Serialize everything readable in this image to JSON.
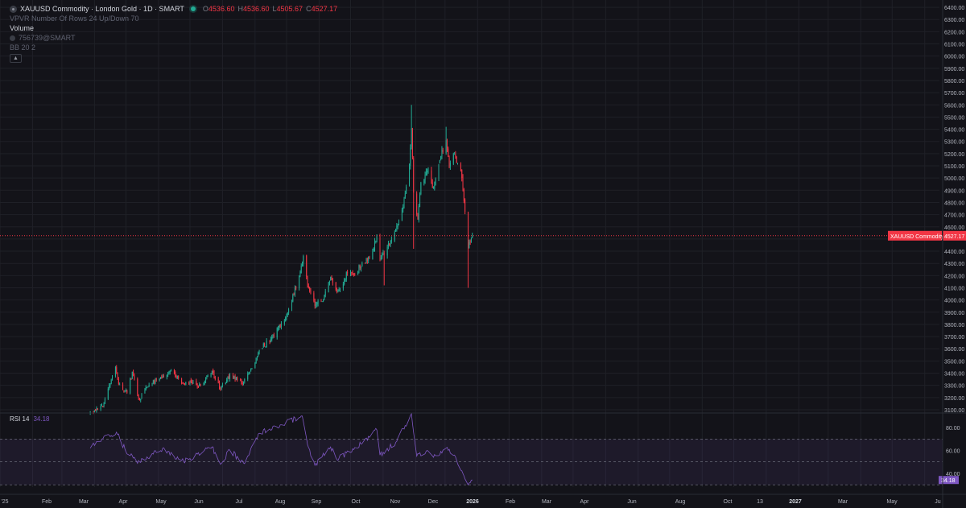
{
  "legend": {
    "symbol": "XAUUSD Commodity · London Gold · 1D · SMART",
    "ohlc": [
      {
        "key": "O",
        "value": "4536.60"
      },
      {
        "key": "H",
        "value": "4536.60"
      },
      {
        "key": "L",
        "value": "4505.67"
      },
      {
        "key": "C",
        "value": "4527.17"
      }
    ],
    "vpvr": "VPVR Number Of Rows 24 Up/Down 70",
    "volume_label": "Volume",
    "volume_value": "756739@SMART",
    "bb": "BB 20 2"
  },
  "price_scale": {
    "ticks": [
      "6400.00",
      "6300.00",
      "6200.00",
      "6100.00",
      "6000.00",
      "5900.00",
      "5800.00",
      "5700.00",
      "5600.00",
      "5500.00",
      "5400.00",
      "5300.00",
      "5200.00",
      "5100.00",
      "5000.00",
      "4900.00",
      "4800.00",
      "4700.00",
      "4600.00",
      "4500.00",
      "4400.00",
      "4300.00",
      "4200.00",
      "4100.00",
      "4000.00",
      "3900.00",
      "3800.00",
      "3700.00",
      "3600.00",
      "3500.00",
      "3400.00",
      "3300.00",
      "3200.00",
      "3100.00"
    ],
    "current_tag": "XAUUSD Commodity",
    "current_value": "4527.17"
  },
  "rsi": {
    "label": "RSI 14",
    "value": "34.18",
    "ticks": [
      "80.00",
      "60.00",
      "40.00"
    ],
    "upper": 70,
    "lower": 30
  },
  "time_axis": {
    "labels": [
      "'25",
      "Feb",
      "Mar",
      "Apr",
      "May",
      "Jun",
      "Jul",
      "Aug",
      "Sep",
      "Oct",
      "Nov",
      "Dec",
      "2026",
      "Feb",
      "Mar",
      "Apr",
      "Jun",
      "Aug",
      "Oct",
      "13",
      "2027",
      "Mar",
      "May",
      "Ju"
    ],
    "bold": [
      "2026",
      "2027"
    ]
  },
  "colors": {
    "background": "#131319",
    "up": "#22ab94",
    "down": "#f23645",
    "rsi_line": "#7e57c2",
    "grid": "#1f2027"
  },
  "chart_data": [
    {
      "type": "candlestick",
      "title": "XAUUSD Commodity · London Gold · 1D · SMART",
      "ylim": [
        3080,
        6460
      ],
      "x_start": "2025-01-01",
      "x_end": "2027-06-15",
      "first_candle": "2025-03-28",
      "last_candle": "2026-03-27",
      "anchors": [
        {
          "date": "2025-03-28",
          "close": 3085
        },
        {
          "date": "2025-04-03",
          "close": 3110
        },
        {
          "date": "2025-04-10",
          "close": 3150
        },
        {
          "date": "2025-04-21",
          "close": 3450
        },
        {
          "date": "2025-04-24",
          "close": 3310
        },
        {
          "date": "2025-05-02",
          "close": 3240
        },
        {
          "date": "2025-05-07",
          "close": 3410
        },
        {
          "date": "2025-05-14",
          "close": 3180
        },
        {
          "date": "2025-05-20",
          "close": 3290
        },
        {
          "date": "2025-06-05",
          "close": 3380
        },
        {
          "date": "2025-06-13",
          "close": 3420
        },
        {
          "date": "2025-06-25",
          "close": 3310
        },
        {
          "date": "2025-07-01",
          "close": 3340
        },
        {
          "date": "2025-07-09",
          "close": 3290
        },
        {
          "date": "2025-07-22",
          "close": 3420
        },
        {
          "date": "2025-07-30",
          "close": 3270
        },
        {
          "date": "2025-08-08",
          "close": 3390
        },
        {
          "date": "2025-08-20",
          "close": 3310
        },
        {
          "date": "2025-08-29",
          "close": 3440
        },
        {
          "date": "2025-09-05",
          "close": 3590
        },
        {
          "date": "2025-09-16",
          "close": 3680
        },
        {
          "date": "2025-09-30",
          "close": 3860
        },
        {
          "date": "2025-10-08",
          "close": 4040
        },
        {
          "date": "2025-10-17",
          "close": 4360
        },
        {
          "date": "2025-10-21",
          "close": 4110
        },
        {
          "date": "2025-10-28",
          "close": 3950
        },
        {
          "date": "2025-11-04",
          "close": 3990
        },
        {
          "date": "2025-11-12",
          "close": 4190
        },
        {
          "date": "2025-11-18",
          "close": 4060
        },
        {
          "date": "2025-11-28",
          "close": 4220
        },
        {
          "date": "2025-12-05",
          "close": 4210
        },
        {
          "date": "2025-12-12",
          "close": 4300
        },
        {
          "date": "2025-12-19",
          "close": 4340
        },
        {
          "date": "2025-12-26",
          "close": 4530
        },
        {
          "date": "2025-12-29",
          "close": 4330
        },
        {
          "date": "2026-01-08",
          "close": 4480
        },
        {
          "date": "2026-01-14",
          "close": 4610
        },
        {
          "date": "2026-01-20",
          "close": 4760
        },
        {
          "date": "2026-01-26",
          "close": 5100
        },
        {
          "date": "2026-01-28",
          "close": 5410
        },
        {
          "date": "2026-01-30",
          "close": 4880
        },
        {
          "date": "2026-02-03",
          "close": 4660
        },
        {
          "date": "2026-02-06",
          "close": 4960
        },
        {
          "date": "2026-02-12",
          "close": 5060
        },
        {
          "date": "2026-02-18",
          "close": 4920
        },
        {
          "date": "2026-02-25",
          "close": 5180
        },
        {
          "date": "2026-03-02",
          "close": 5310
        },
        {
          "date": "2026-03-05",
          "close": 5090
        },
        {
          "date": "2026-03-10",
          "close": 5200
        },
        {
          "date": "2026-03-17",
          "close": 5000
        },
        {
          "date": "2026-03-23",
          "close": 4420
        },
        {
          "date": "2026-03-26",
          "close": 4500
        },
        {
          "date": "2026-03-27",
          "close": 4527.17
        }
      ],
      "extremes": [
        {
          "date": "2026-01-28",
          "high": 5600
        },
        {
          "date": "2026-01-30",
          "low": 4420
        },
        {
          "date": "2026-03-02",
          "high": 5420
        },
        {
          "date": "2026-03-23",
          "low": 4100
        },
        {
          "date": "2026-01-02",
          "low": 4120
        }
      ],
      "current_price": 4527.17
    },
    {
      "type": "line",
      "title": "RSI 14",
      "ylim": [
        28,
        92
      ],
      "bands": [
        70,
        50,
        30
      ],
      "points": [
        {
          "date": "2025-03-28",
          "value": 62
        },
        {
          "date": "2025-04-08",
          "value": 70
        },
        {
          "date": "2025-04-22",
          "value": 76
        },
        {
          "date": "2025-05-02",
          "value": 57
        },
        {
          "date": "2025-05-14",
          "value": 50
        },
        {
          "date": "2025-06-05",
          "value": 62
        },
        {
          "date": "2025-06-25",
          "value": 50
        },
        {
          "date": "2025-07-22",
          "value": 63
        },
        {
          "date": "2025-07-30",
          "value": 48
        },
        {
          "date": "2025-08-08",
          "value": 60
        },
        {
          "date": "2025-08-21",
          "value": 49
        },
        {
          "date": "2025-09-05",
          "value": 75
        },
        {
          "date": "2025-09-30",
          "value": 84
        },
        {
          "date": "2025-10-16",
          "value": 90
        },
        {
          "date": "2025-10-21",
          "value": 65
        },
        {
          "date": "2025-10-28",
          "value": 47
        },
        {
          "date": "2025-11-12",
          "value": 63
        },
        {
          "date": "2025-11-18",
          "value": 52
        },
        {
          "date": "2025-12-12",
          "value": 66
        },
        {
          "date": "2025-12-26",
          "value": 78
        },
        {
          "date": "2025-12-29",
          "value": 56
        },
        {
          "date": "2026-01-14",
          "value": 68
        },
        {
          "date": "2026-01-28",
          "value": 92
        },
        {
          "date": "2026-02-02",
          "value": 55
        },
        {
          "date": "2026-02-12",
          "value": 60
        },
        {
          "date": "2026-02-18",
          "value": 54
        },
        {
          "date": "2026-03-02",
          "value": 62
        },
        {
          "date": "2026-03-10",
          "value": 56
        },
        {
          "date": "2026-03-23",
          "value": 30
        },
        {
          "date": "2026-03-27",
          "value": 34.18
        }
      ]
    }
  ]
}
